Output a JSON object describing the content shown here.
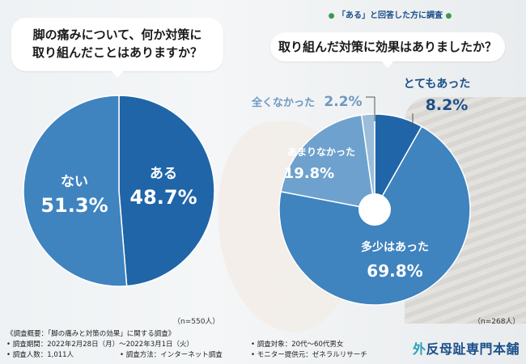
{
  "note_top": "「ある」と回答した方に調査",
  "questions": {
    "q1_line1": "脚の痛みについて、何か対策に",
    "q1_line2": "取り組んだことはありますか？",
    "q2": "取り組んだ対策に効果はありましたか？"
  },
  "colors": {
    "dark": "#1f65a8",
    "mid": "#3f83bf",
    "light": "#6ea1cd",
    "pale": "#9bbdd9",
    "label_text": "#1b4f8a"
  },
  "chart_data": [
    {
      "type": "pie",
      "slices": [
        {
          "label": "ある",
          "value": 48.7,
          "value_text": "48.7%"
        },
        {
          "label": "ない",
          "value": 51.3,
          "value_text": "51.3%"
        }
      ],
      "n_label": "（n=550人）"
    },
    {
      "type": "pie",
      "slices": [
        {
          "label": "とてもあった",
          "value": 8.2,
          "value_text": "8.2%"
        },
        {
          "label": "多少はあった",
          "value": 69.8,
          "value_text": "69.8%"
        },
        {
          "label": "あまりなかった",
          "value": 19.8,
          "value_text": "19.8%"
        },
        {
          "label": "全くなかった",
          "value": 2.2,
          "value_text": "2.2%"
        }
      ],
      "n_label": "（n=268人）"
    }
  ],
  "footer": {
    "title": "《調査概要：「脚の痛みと対策の効果」に関する調査》",
    "period": "• 調査期間：2022年2月28日（月）～2022年3月1日（火）",
    "count": "• 調査人数：1,011人",
    "method": "• 調査方法：インターネット調査",
    "target": "• 調査対象：20代～60代男女",
    "provider": "• モニター提供元：ゼネラルリサーチ"
  },
  "logo": {
    "accent": "外",
    "rest": "反母趾専門本舗"
  }
}
